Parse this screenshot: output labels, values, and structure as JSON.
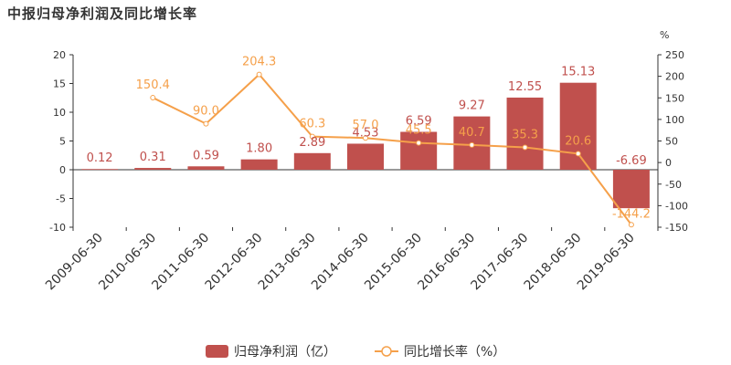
{
  "chart_data": {
    "type": "bar+line",
    "title": "中报归母净利润及同比增长率",
    "unit_right": "%",
    "categories": [
      "2009-06-30",
      "2010-06-30",
      "2011-06-30",
      "2012-06-30",
      "2013-06-30",
      "2014-06-30",
      "2015-06-30",
      "2016-06-30",
      "2017-06-30",
      "2018-06-30",
      "2019-06-30"
    ],
    "series": [
      {
        "name": "归母净利润（亿）",
        "type": "bar",
        "axis": "left",
        "values": [
          0.12,
          0.31,
          0.59,
          1.8,
          2.89,
          4.53,
          6.59,
          9.27,
          12.55,
          15.13,
          -6.69
        ],
        "labels": [
          "0.12",
          "0.31",
          "0.59",
          "1.80",
          "2.89",
          "4.53",
          "6.59",
          "9.27",
          "12.55",
          "15.13",
          "-6.69"
        ]
      },
      {
        "name": "同比增长率（%）",
        "type": "line",
        "axis": "right",
        "values": [
          null,
          150.4,
          90.0,
          204.3,
          60.3,
          57.0,
          45.5,
          40.7,
          35.3,
          20.6,
          -144.2
        ],
        "labels": [
          "",
          "150.4",
          "90.0",
          "204.3",
          "60.3",
          "57.0",
          "45.5",
          "40.7",
          "35.3",
          "20.6",
          "-144.2"
        ]
      }
    ],
    "y_left": {
      "min": -10,
      "max": 20,
      "ticks": [
        -10,
        -5,
        0,
        5,
        10,
        15,
        20
      ]
    },
    "y_right": {
      "min": -150,
      "max": 250,
      "ticks": [
        -150,
        -100,
        -50,
        0,
        50,
        100,
        150,
        200,
        250
      ]
    },
    "colors": {
      "bar": "#c0504d",
      "line": "#f5a04a"
    },
    "legend_position": "bottom"
  }
}
